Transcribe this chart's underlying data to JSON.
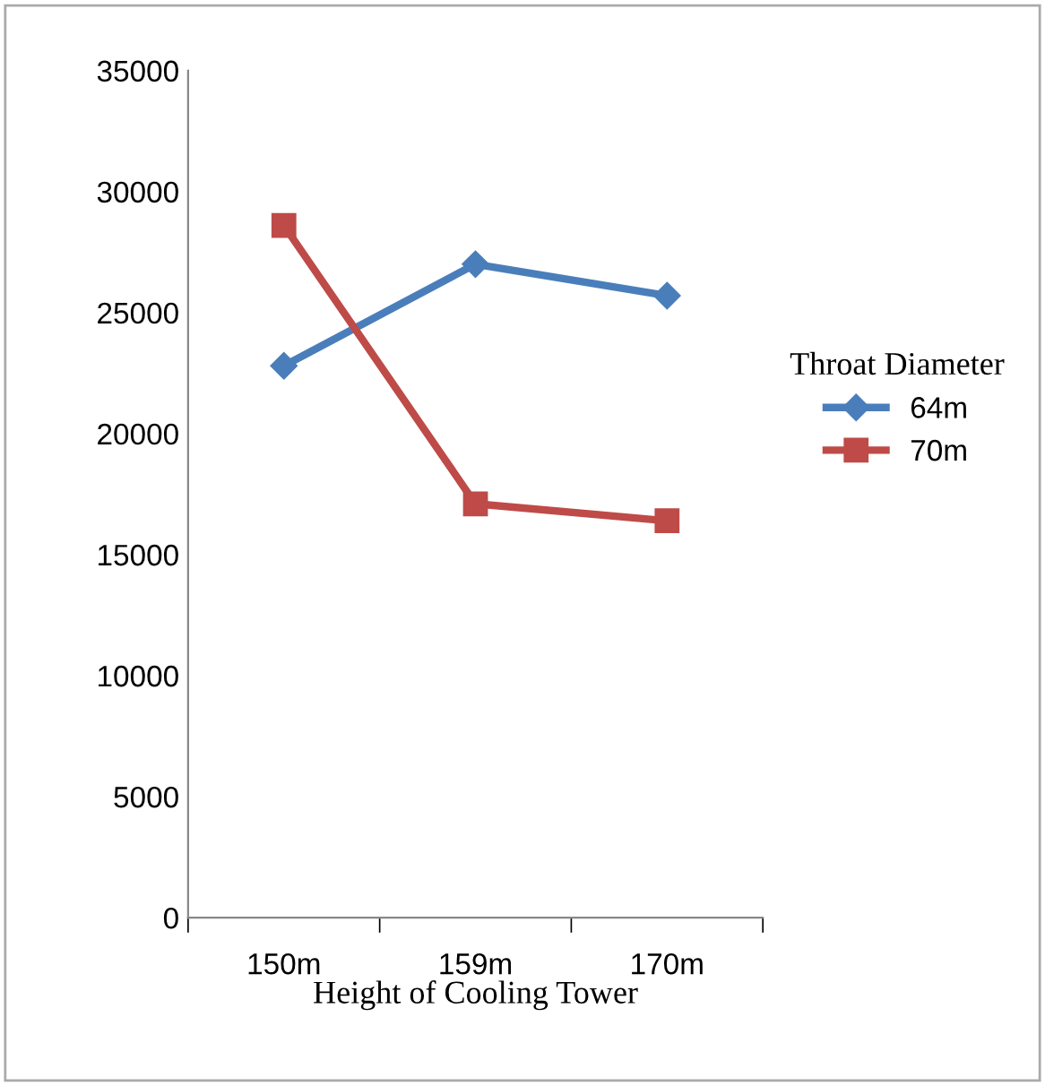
{
  "chart_data": {
    "type": "line",
    "xlabel": "Height of Cooling Tower",
    "legend_title": "Throat Diameter",
    "categories": [
      "150m",
      "159m",
      "170m"
    ],
    "series": [
      {
        "name": "64m",
        "color": "#4a7ebb",
        "marker": "diamond",
        "values": [
          22800,
          27000,
          25700
        ]
      },
      {
        "name": "70m",
        "color": "#be4b48",
        "marker": "square",
        "values": [
          28600,
          17100,
          16400
        ]
      }
    ],
    "ylim": [
      0,
      35000
    ],
    "yticks": [
      0,
      5000,
      10000,
      15000,
      20000,
      25000,
      30000,
      35000
    ],
    "grid": false,
    "legend": "right",
    "line_style": "solid"
  }
}
